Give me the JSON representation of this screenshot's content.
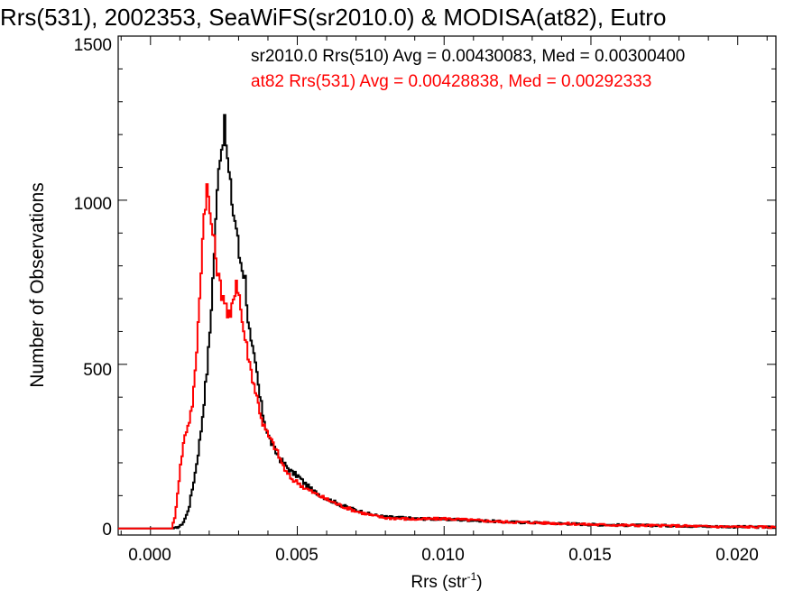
{
  "chart_data": {
    "type": "line",
    "title": "Rrs(531), 2002353, SeaWiFS(sr2010.0) & MODISA(at82), Eutro",
    "xlabel": "Rrs (str",
    "xlabel_sup": "-1",
    "xlabel_close": ")",
    "ylabel": "Number of Observations",
    "xlim": [
      -0.0011,
      0.0213
    ],
    "ylim": [
      -20,
      1500
    ],
    "x_ticks": [
      0.0,
      0.005,
      0.01,
      0.015,
      0.02
    ],
    "x_tick_labels": [
      "0.000",
      "0.005",
      "0.010",
      "0.015",
      "0.020"
    ],
    "y_ticks": [
      0,
      500,
      1000,
      1500
    ],
    "y_tick_labels": [
      "0",
      "500",
      "1000",
      "1500"
    ],
    "grid": false,
    "legend": "top-right",
    "series": [
      {
        "name": "sr2010.0 Rrs(510) Avg = 0.00430083, Med = 0.00300400",
        "color": "#000000",
        "points": [
          [
            -0.0011,
            0
          ],
          [
            0.0,
            0
          ],
          [
            0.0008,
            0
          ],
          [
            0.001,
            8
          ],
          [
            0.0011,
            20
          ],
          [
            0.0012,
            40
          ],
          [
            0.0013,
            70
          ],
          [
            0.0014,
            120
          ],
          [
            0.0015,
            170
          ],
          [
            0.0016,
            230
          ],
          [
            0.0017,
            300
          ],
          [
            0.0018,
            390
          ],
          [
            0.0019,
            480
          ],
          [
            0.002,
            600
          ],
          [
            0.0021,
            760
          ],
          [
            0.0022,
            930
          ],
          [
            0.0023,
            1120
          ],
          [
            0.0024,
            1160
          ],
          [
            0.0025,
            1230
          ],
          [
            0.0026,
            1120
          ],
          [
            0.0027,
            1040
          ],
          [
            0.0028,
            960
          ],
          [
            0.0029,
            920
          ],
          [
            0.003,
            830
          ],
          [
            0.0031,
            800
          ],
          [
            0.0032,
            760
          ],
          [
            0.0033,
            640
          ],
          [
            0.0034,
            560
          ],
          [
            0.0035,
            520
          ],
          [
            0.0036,
            470
          ],
          [
            0.0037,
            400
          ],
          [
            0.0038,
            350
          ],
          [
            0.0039,
            310
          ],
          [
            0.004,
            280
          ],
          [
            0.0042,
            240
          ],
          [
            0.0044,
            210
          ],
          [
            0.0046,
            190
          ],
          [
            0.0048,
            170
          ],
          [
            0.005,
            160
          ],
          [
            0.0052,
            140
          ],
          [
            0.0055,
            115
          ],
          [
            0.006,
            90
          ],
          [
            0.0065,
            70
          ],
          [
            0.007,
            55
          ],
          [
            0.0075,
            42
          ],
          [
            0.008,
            35
          ],
          [
            0.009,
            30
          ],
          [
            0.01,
            28
          ],
          [
            0.011,
            25
          ],
          [
            0.012,
            20
          ],
          [
            0.013,
            18
          ],
          [
            0.014,
            15
          ],
          [
            0.015,
            12
          ],
          [
            0.016,
            10
          ],
          [
            0.017,
            9
          ],
          [
            0.018,
            8
          ],
          [
            0.019,
            6
          ],
          [
            0.02,
            5
          ],
          [
            0.0213,
            4
          ]
        ]
      },
      {
        "name": "at82 Rrs(531) Avg = 0.00428838, Med = 0.00292333",
        "color": "#ff0000",
        "points": [
          [
            -0.0011,
            0
          ],
          [
            0.0,
            0
          ],
          [
            0.0007,
            0
          ],
          [
            0.0008,
            30
          ],
          [
            0.0009,
            110
          ],
          [
            0.001,
            190
          ],
          [
            0.0011,
            260
          ],
          [
            0.0012,
            300
          ],
          [
            0.0013,
            330
          ],
          [
            0.0014,
            380
          ],
          [
            0.0015,
            470
          ],
          [
            0.0016,
            620
          ],
          [
            0.0017,
            800
          ],
          [
            0.0018,
            960
          ],
          [
            0.0019,
            1040
          ],
          [
            0.002,
            960
          ],
          [
            0.0021,
            900
          ],
          [
            0.0022,
            830
          ],
          [
            0.0023,
            760
          ],
          [
            0.0024,
            720
          ],
          [
            0.0025,
            700
          ],
          [
            0.0026,
            650
          ],
          [
            0.0027,
            640
          ],
          [
            0.0028,
            700
          ],
          [
            0.0029,
            760
          ],
          [
            0.003,
            710
          ],
          [
            0.0031,
            630
          ],
          [
            0.0032,
            580
          ],
          [
            0.0033,
            530
          ],
          [
            0.0034,
            480
          ],
          [
            0.0035,
            440
          ],
          [
            0.0036,
            400
          ],
          [
            0.0037,
            360
          ],
          [
            0.0038,
            320
          ],
          [
            0.0039,
            300
          ],
          [
            0.004,
            280
          ],
          [
            0.0042,
            250
          ],
          [
            0.0044,
            210
          ],
          [
            0.0046,
            170
          ],
          [
            0.0048,
            150
          ],
          [
            0.005,
            140
          ],
          [
            0.0052,
            125
          ],
          [
            0.0055,
            110
          ],
          [
            0.006,
            88
          ],
          [
            0.0065,
            68
          ],
          [
            0.007,
            52
          ],
          [
            0.0075,
            40
          ],
          [
            0.008,
            32
          ],
          [
            0.009,
            28
          ],
          [
            0.01,
            30
          ],
          [
            0.011,
            25
          ],
          [
            0.012,
            20
          ],
          [
            0.013,
            18
          ],
          [
            0.014,
            15
          ],
          [
            0.015,
            12
          ],
          [
            0.016,
            10
          ],
          [
            0.017,
            9
          ],
          [
            0.018,
            8
          ],
          [
            0.019,
            6
          ],
          [
            0.02,
            5
          ],
          [
            0.0213,
            4
          ]
        ]
      }
    ]
  }
}
